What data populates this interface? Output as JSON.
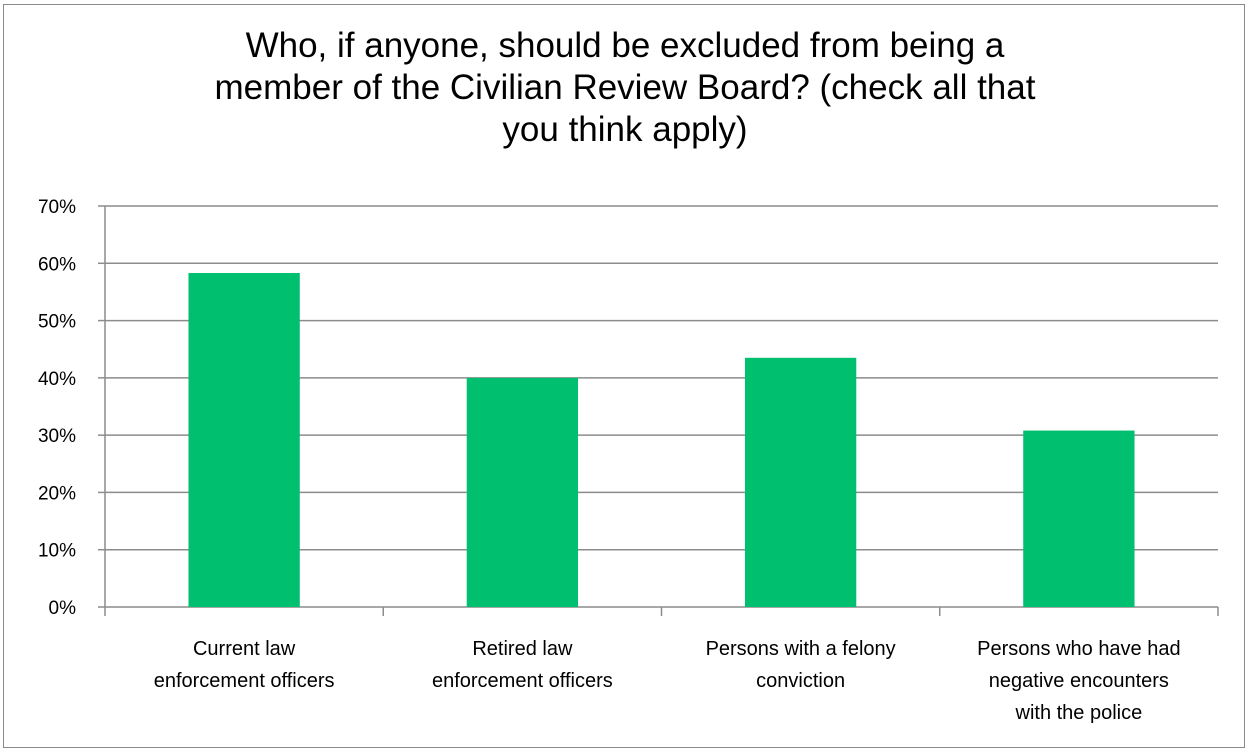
{
  "chart_data": {
    "type": "bar",
    "title_lines": [
      "Who, if anyone, should be excluded from being a",
      "member of the Civilian Review Board? (check all that",
      "you think apply)"
    ],
    "categories": [
      [
        "Current law",
        "enforcement officers"
      ],
      [
        "Retired law",
        "enforcement officers"
      ],
      [
        "Persons with a felony",
        "conviction"
      ],
      [
        "Persons who have had",
        "negative encounters",
        "with the police"
      ]
    ],
    "values": [
      0.583,
      0.4,
      0.435,
      0.308
    ],
    "yticks": [
      "0%",
      "10%",
      "20%",
      "30%",
      "40%",
      "50%",
      "60%",
      "70%"
    ],
    "ylim": [
      0,
      0.7
    ],
    "grid": true,
    "bar_color": "#00bf6f",
    "grid_color": "#8c8c8c"
  }
}
